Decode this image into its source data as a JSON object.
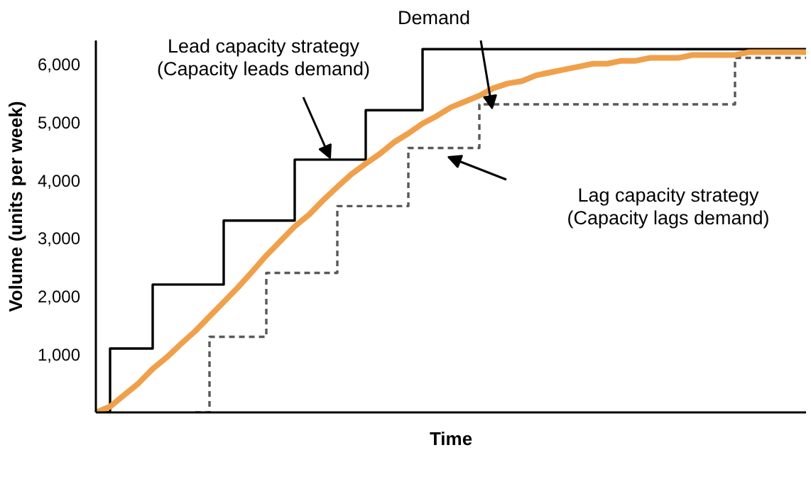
{
  "chart_data": {
    "type": "line",
    "xlabel": "Time",
    "ylabel": "Volume (units per week)",
    "categories": [
      null,
      null,
      null,
      null,
      null,
      null,
      null,
      null,
      null,
      null,
      null,
      null,
      null,
      null,
      null,
      null,
      null,
      null,
      null,
      null,
      null,
      null,
      null,
      null,
      null,
      null,
      null,
      null,
      null,
      null,
      null,
      null,
      null,
      null,
      null,
      null,
      null,
      null,
      null,
      null,
      null,
      null,
      null,
      null,
      null,
      null,
      null,
      null,
      null,
      null,
      null
    ],
    "ylim": [
      0,
      6400
    ],
    "grid": false,
    "yticks": [
      {
        "value": 1000,
        "label": "1,000"
      },
      {
        "value": 2000,
        "label": "2,000"
      },
      {
        "value": 3000,
        "label": "3,000"
      },
      {
        "value": 4000,
        "label": "4,000"
      },
      {
        "value": 5000,
        "label": "5,000"
      },
      {
        "value": 6000,
        "label": "6,000"
      }
    ],
    "series": [
      {
        "type": "step",
        "color": "#000000",
        "line_style": "solid",
        "values": [
          0,
          1100,
          1100,
          1100,
          2200,
          2200,
          2200,
          2200,
          2200,
          3300,
          3300,
          3300,
          3300,
          3300,
          4350,
          4350,
          4350,
          4350,
          4350,
          5200,
          5200,
          5200,
          5200,
          6250,
          6250,
          6250,
          6250,
          6250,
          6250,
          6250,
          6250,
          6250,
          6250,
          6250,
          6250,
          6250,
          6250,
          6250,
          6250,
          6250,
          6250,
          6250,
          6250,
          6250,
          6250,
          6250,
          6250,
          6250,
          6250,
          6250,
          6250
        ]
      },
      {
        "type": "step",
        "color": "#58595b",
        "line_style": "dashed",
        "values": [
          null,
          null,
          null,
          null,
          null,
          null,
          null,
          0,
          1300,
          1300,
          1300,
          1300,
          2400,
          2400,
          2400,
          2400,
          2400,
          3550,
          3550,
          3550,
          3550,
          3550,
          4550,
          4550,
          4550,
          4550,
          4550,
          5300,
          5300,
          5300,
          5300,
          5300,
          5300,
          5300,
          5300,
          5300,
          5300,
          5300,
          5300,
          5300,
          5300,
          5300,
          5300,
          5300,
          5300,
          6100,
          6100,
          6100,
          6100,
          6100,
          6100
        ]
      },
      {
        "color": "#f0a04b",
        "line_style": "solid",
        "values": [
          0,
          100,
          300,
          500,
          750,
          950,
          1180,
          1400,
          1650,
          1900,
          2150,
          2420,
          2700,
          2950,
          3200,
          3400,
          3650,
          3880,
          4100,
          4280,
          4450,
          4650,
          4800,
          4970,
          5100,
          5250,
          5350,
          5450,
          5580,
          5660,
          5700,
          5800,
          5850,
          5900,
          5950,
          6000,
          6000,
          6050,
          6050,
          6100,
          6100,
          6100,
          6150,
          6150,
          6150,
          6150,
          6200,
          6200,
          6200,
          6200,
          6200
        ]
      }
    ],
    "annotations": [
      "Lead capacity strategy\n(Capacity leads demand)",
      "Demand",
      "Lag capacity strategy\n(Capacity lags demand)"
    ]
  }
}
